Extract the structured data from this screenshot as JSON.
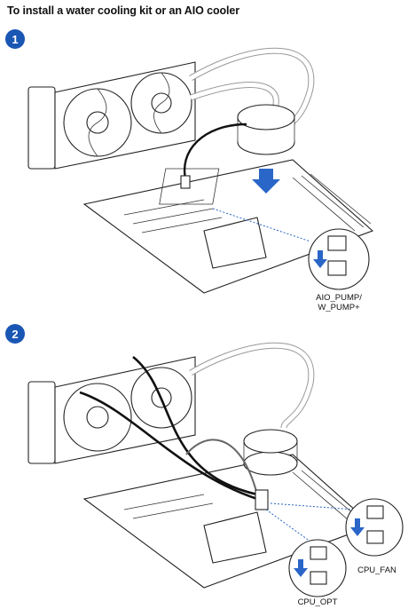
{
  "title": "To install a water cooling kit or an AIO cooler",
  "steps": [
    {
      "number": "1",
      "callouts": [
        {
          "line1": "AIO_PUMP/",
          "line2": "W_PUMP+"
        }
      ]
    },
    {
      "number": "2",
      "callouts": [
        {
          "line1": "CPU_FAN"
        },
        {
          "line1": "CPU_OPT"
        }
      ]
    }
  ],
  "colors": {
    "badge": "#1a56b4",
    "arrow": "#2a66c8"
  }
}
